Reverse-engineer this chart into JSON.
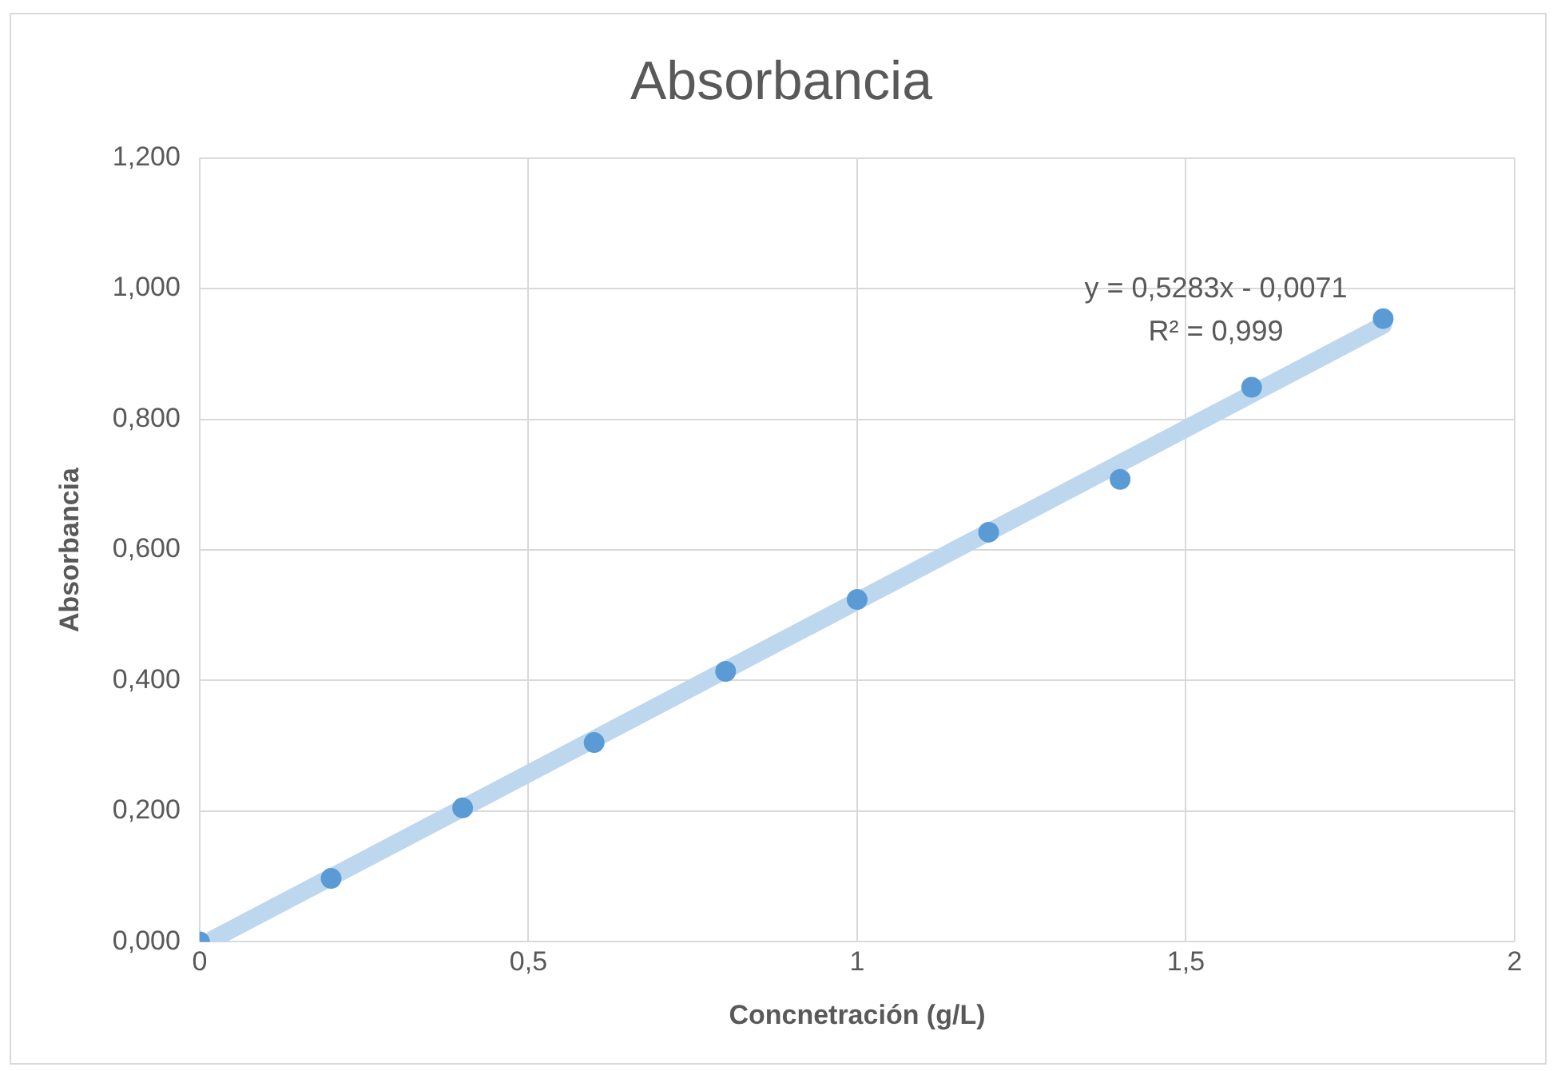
{
  "chart_data": {
    "type": "scatter",
    "title": "Absorbancia",
    "xlabel": "Concnetración (g/L)",
    "ylabel": "Absorbancia",
    "x": [
      0,
      0.2,
      0.4,
      0.6,
      0.8,
      1,
      1.2,
      1.4,
      1.6,
      1.8
    ],
    "series": [
      {
        "color": "#5b9bd5",
        "marker": "circle",
        "values": [
          0,
          0.097,
          0.205,
          0.305,
          0.414,
          0.524,
          0.627,
          0.708,
          0.849,
          0.954
        ]
      },
      {
        "type": "line",
        "color": "#bdd7ee",
        "x": [
          0.02,
          1.8
        ],
        "values": [
          0.004,
          0.944
        ]
      }
    ],
    "xlim": [
      0,
      2
    ],
    "xticks": [
      {
        "value": 0,
        "label": "0"
      },
      {
        "value": 0.5,
        "label": "0,5"
      },
      {
        "value": 1,
        "label": "1"
      },
      {
        "value": 1.5,
        "label": "1,5"
      },
      {
        "value": 2,
        "label": "2"
      }
    ],
    "ylim": [
      0,
      1.2
    ],
    "yticks": [
      {
        "value": 0,
        "label": "0,000"
      },
      {
        "value": 0.2,
        "label": "0,200"
      },
      {
        "value": 0.4,
        "label": "0,400"
      },
      {
        "value": 0.6,
        "label": "0,600"
      },
      {
        "value": 0.8,
        "label": "0,800"
      },
      {
        "value": 1,
        "label": "1,000"
      },
      {
        "value": 1.2,
        "label": "1,200"
      }
    ],
    "annotations": [
      "y = 0,5283x - 0,0071",
      "R² = 0,999"
    ],
    "grid": true,
    "legend": false
  }
}
